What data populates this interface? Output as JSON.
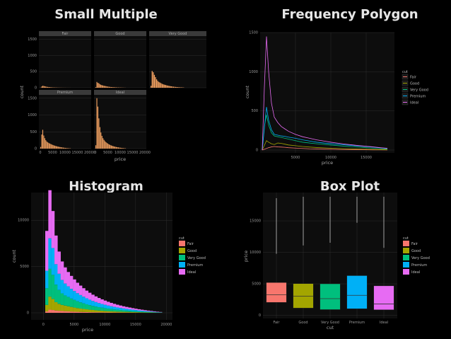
{
  "titles": {
    "small_multiple": "Small Multiple",
    "frequency_polygon": "Frequency Polygon",
    "histogram": "Histogram",
    "box_plot": "Box Plot"
  },
  "colors": {
    "background": "#000000",
    "panel": "#0d0d0d",
    "grid": "#2e2e2e",
    "orange": "#f4a261",
    "Fair": "#f8766d",
    "Good": "#a3a500",
    "Very Good": "#00bf7d",
    "Premium": "#00b0f6",
    "Ideal": "#e76bf3"
  },
  "chart_data": [
    {
      "id": "small_multiple",
      "type": "bar",
      "facets": [
        "Fair",
        "Good",
        "Very Good",
        "Premium",
        "Ideal"
      ],
      "xlabel": "price",
      "ylabel": "count",
      "x_ticks": [
        0,
        5000,
        10000,
        15000,
        20000
      ],
      "x_tick_labels": [
        "0",
        "5000",
        "10000",
        "15000",
        "20000"
      ],
      "y_ticks": [
        0,
        500,
        1000,
        1500
      ],
      "y_tick_labels": [
        "0",
        "500",
        "1000",
        "1500"
      ],
      "ylim": [
        0,
        1600
      ],
      "xlim": [
        0,
        20000
      ],
      "series": [
        {
          "name": "Fair",
          "values": [
            5,
            40,
            60,
            55,
            45,
            38,
            30,
            26,
            22,
            18,
            15,
            12,
            10,
            9,
            8,
            7,
            6,
            5,
            4,
            4,
            3,
            3,
            2,
            2,
            2,
            1,
            1,
            1,
            1,
            1
          ]
        },
        {
          "name": "Good",
          "values": [
            20,
            180,
            150,
            140,
            110,
            90,
            80,
            70,
            60,
            55,
            48,
            40,
            35,
            30,
            26,
            22,
            20,
            18,
            16,
            14,
            12,
            10,
            9,
            8,
            7,
            6,
            5,
            4,
            3,
            2
          ]
        },
        {
          "name": "Very Good",
          "values": [
            60,
            520,
            480,
            400,
            330,
            260,
            210,
            180,
            160,
            140,
            120,
            105,
            95,
            85,
            75,
            66,
            58,
            50,
            44,
            38,
            33,
            29,
            25,
            22,
            19,
            16,
            14,
            12,
            10,
            8
          ]
        },
        {
          "name": "Premium",
          "values": [
            50,
            420,
            560,
            390,
            310,
            250,
            210,
            185,
            165,
            150,
            135,
            120,
            108,
            96,
            86,
            76,
            68,
            60,
            52,
            46,
            40,
            35,
            30,
            26,
            22,
            18,
            15,
            12,
            10,
            8
          ]
        },
        {
          "name": "Ideal",
          "values": [
            100,
            1500,
            1250,
            900,
            640,
            480,
            380,
            310,
            260,
            220,
            190,
            165,
            145,
            125,
            110,
            96,
            84,
            74,
            64,
            56,
            48,
            42,
            36,
            31,
            26,
            22,
            18,
            15,
            12,
            9
          ]
        }
      ]
    },
    {
      "id": "frequency_polygon",
      "type": "line",
      "xlabel": "price",
      "ylabel": "count",
      "x_ticks": [
        5000,
        10000,
        15000
      ],
      "x_tick_labels": [
        "5000",
        "10000",
        "15000"
      ],
      "y_ticks": [
        0,
        500,
        1000,
        1500
      ],
      "y_tick_labels": [
        "0",
        "500",
        "1000",
        "1500"
      ],
      "xlim": [
        0,
        19000
      ],
      "ylim": [
        0,
        1500
      ],
      "legend_title": "cut",
      "legend_position": "right",
      "series": [
        {
          "name": "Fair",
          "x": [
            300,
            600,
            900,
            1200,
            1600,
            2000,
            2500,
            3000,
            3500,
            4000,
            5000,
            6000,
            7000,
            8000,
            9000,
            10000,
            11000,
            12000,
            13000,
            14000,
            15000,
            16000,
            17000,
            18000
          ],
          "values": [
            0,
            10,
            20,
            30,
            40,
            45,
            40,
            38,
            35,
            30,
            25,
            20,
            16,
            14,
            12,
            10,
            8,
            7,
            6,
            5,
            4,
            3,
            2,
            1
          ]
        },
        {
          "name": "Good",
          "x": [
            300,
            600,
            900,
            1200,
            1600,
            2000,
            2500,
            3000,
            3500,
            4000,
            5000,
            6000,
            7000,
            8000,
            9000,
            10000,
            11000,
            12000,
            13000,
            14000,
            15000,
            16000,
            17000,
            18000
          ],
          "values": [
            0,
            60,
            120,
            100,
            80,
            70,
            90,
            85,
            75,
            65,
            55,
            45,
            38,
            32,
            28,
            24,
            20,
            17,
            14,
            12,
            10,
            8,
            6,
            4
          ]
        },
        {
          "name": "Very Good",
          "x": [
            300,
            600,
            900,
            1200,
            1600,
            2000,
            2500,
            3000,
            3500,
            4000,
            5000,
            6000,
            7000,
            8000,
            9000,
            10000,
            11000,
            12000,
            13000,
            14000,
            15000,
            16000,
            17000,
            18000
          ],
          "values": [
            0,
            300,
            450,
            320,
            220,
            180,
            170,
            160,
            150,
            140,
            120,
            100,
            90,
            80,
            72,
            64,
            56,
            48,
            42,
            36,
            30,
            24,
            18,
            12
          ]
        },
        {
          "name": "Premium",
          "x": [
            300,
            600,
            900,
            1200,
            1600,
            2000,
            2500,
            3000,
            3500,
            4000,
            5000,
            6000,
            7000,
            8000,
            9000,
            10000,
            11000,
            12000,
            13000,
            14000,
            15000,
            16000,
            17000,
            18000
          ],
          "values": [
            0,
            280,
            550,
            380,
            260,
            200,
            190,
            180,
            175,
            165,
            150,
            130,
            115,
            100,
            90,
            82,
            74,
            66,
            58,
            50,
            44,
            36,
            28,
            20
          ]
        },
        {
          "name": "Ideal",
          "x": [
            300,
            600,
            900,
            1200,
            1600,
            2000,
            2500,
            3000,
            3500,
            4000,
            5000,
            6000,
            7000,
            8000,
            9000,
            10000,
            11000,
            12000,
            13000,
            14000,
            15000,
            16000,
            17000,
            18000
          ],
          "values": [
            0,
            800,
            1450,
            1000,
            600,
            420,
            350,
            300,
            270,
            240,
            200,
            170,
            150,
            130,
            115,
            100,
            88,
            76,
            66,
            56,
            48,
            40,
            30,
            22
          ]
        }
      ]
    },
    {
      "id": "histogram",
      "type": "bar",
      "stacked": true,
      "xlabel": "price",
      "ylabel": "count",
      "x_ticks": [
        0,
        5000,
        10000,
        15000,
        20000
      ],
      "x_tick_labels": [
        "0",
        "5000",
        "10000",
        "15000",
        "20000"
      ],
      "y_ticks": [
        0,
        5000,
        10000
      ],
      "y_tick_labels": [
        "0",
        "5000",
        "10000"
      ],
      "xlim": [
        -2000,
        21000
      ],
      "ylim": [
        0,
        13000
      ],
      "legend_title": "cut",
      "legend_position": "right",
      "bin_width": 500,
      "series": [
        {
          "name": "Fair",
          "values": [
            150,
            350,
            300,
            250,
            220,
            200,
            180,
            160,
            140,
            120,
            110,
            100,
            90,
            80,
            70,
            65,
            60,
            55,
            50,
            45,
            40,
            35,
            30,
            28,
            26,
            24,
            22,
            20,
            18,
            16,
            14,
            12,
            10,
            9,
            8,
            7,
            6,
            5
          ]
        },
        {
          "name": "Good",
          "values": [
            700,
            1400,
            1200,
            900,
            750,
            650,
            600,
            550,
            500,
            450,
            400,
            360,
            330,
            300,
            270,
            240,
            215,
            195,
            175,
            160,
            145,
            130,
            118,
            105,
            95,
            85,
            78,
            70,
            62,
            55,
            48,
            42,
            36,
            30,
            25,
            20,
            16,
            12
          ]
        },
        {
          "name": "Very Good",
          "values": [
            1800,
            3000,
            2600,
            1900,
            1500,
            1250,
            1100,
            1000,
            900,
            820,
            740,
            670,
            600,
            540,
            490,
            440,
            400,
            360,
            330,
            300,
            270,
            245,
            220,
            200,
            180,
            160,
            145,
            130,
            115,
            100,
            88,
            76,
            65,
            55,
            45,
            36,
            28,
            20
          ]
        },
        {
          "name": "Premium",
          "values": [
            1900,
            3300,
            2900,
            2200,
            1750,
            1450,
            1280,
            1150,
            1050,
            960,
            870,
            790,
            720,
            650,
            590,
            535,
            485,
            440,
            400,
            365,
            330,
            300,
            272,
            246,
            222,
            200,
            180,
            162,
            145,
            128,
            112,
            97,
            83,
            70,
            58,
            46,
            35,
            25
          ]
        },
        {
          "name": "Ideal",
          "values": [
            4300,
            5200,
            4000,
            3100,
            2400,
            2000,
            1750,
            1550,
            1400,
            1260,
            1130,
            1020,
            920,
            830,
            750,
            680,
            615,
            555,
            500,
            450,
            405,
            365,
            330,
            296,
            266,
            238,
            212,
            188,
            166,
            146,
            127,
            110,
            94,
            79,
            65,
            52,
            40,
            29
          ]
        }
      ]
    },
    {
      "id": "box_plot",
      "type": "box",
      "xlabel": "cut",
      "ylabel": "price",
      "categories": [
        "Fair",
        "Good",
        "Very Good",
        "Premium",
        "Ideal"
      ],
      "y_ticks": [
        0,
        5000,
        10000,
        15000
      ],
      "y_tick_labels": [
        "0",
        "5000",
        "10000",
        "15000"
      ],
      "ylim": [
        -500,
        19500
      ],
      "legend_title": "cut",
      "legend_position": "right",
      "boxes": [
        {
          "name": "Fair",
          "q1": 2050,
          "median": 3280,
          "q3": 5200
        },
        {
          "name": "Good",
          "q1": 1150,
          "median": 3050,
          "q3": 5030
        },
        {
          "name": "Very Good",
          "q1": 910,
          "median": 2650,
          "q3": 5000
        },
        {
          "name": "Premium",
          "q1": 1050,
          "median": 3180,
          "q3": 6300
        },
        {
          "name": "Ideal",
          "q1": 880,
          "median": 1810,
          "q3": 4680
        }
      ],
      "outliers": [
        {
          "name": "Fair",
          "from": 9800,
          "to": 18600
        },
        {
          "name": "Good",
          "from": 11100,
          "to": 18800
        },
        {
          "name": "Very Good",
          "from": 11500,
          "to": 18800
        },
        {
          "name": "Premium",
          "from": 14700,
          "to": 18800
        },
        {
          "name": "Ideal",
          "from": 10700,
          "to": 18800
        }
      ]
    }
  ]
}
